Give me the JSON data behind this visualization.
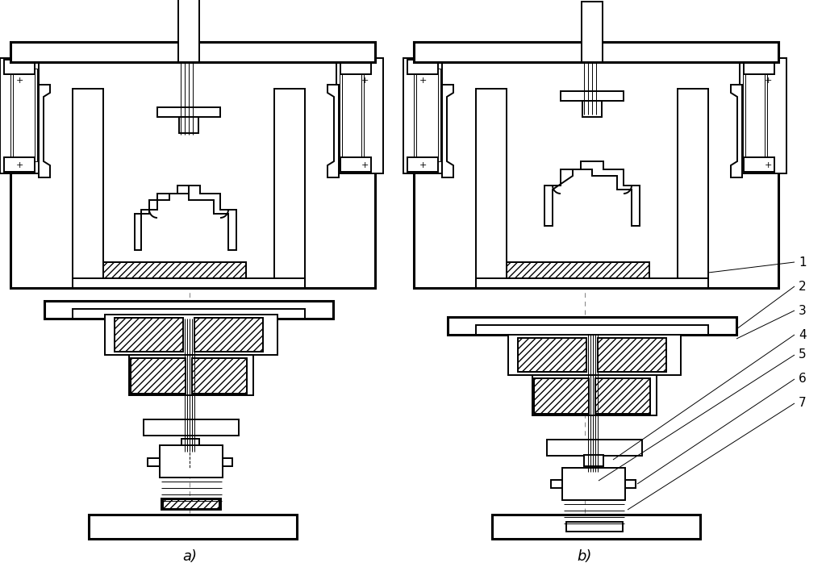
{
  "bg_color": "#ffffff",
  "label_a": "a)",
  "label_b": "b)",
  "numbers": [
    "1",
    "2",
    "3",
    "4",
    "5",
    "6",
    "7"
  ],
  "label_fontsize": 13,
  "number_fontsize": 11,
  "lw_thick": 2.2,
  "lw_med": 1.4,
  "lw_thin": 0.7
}
